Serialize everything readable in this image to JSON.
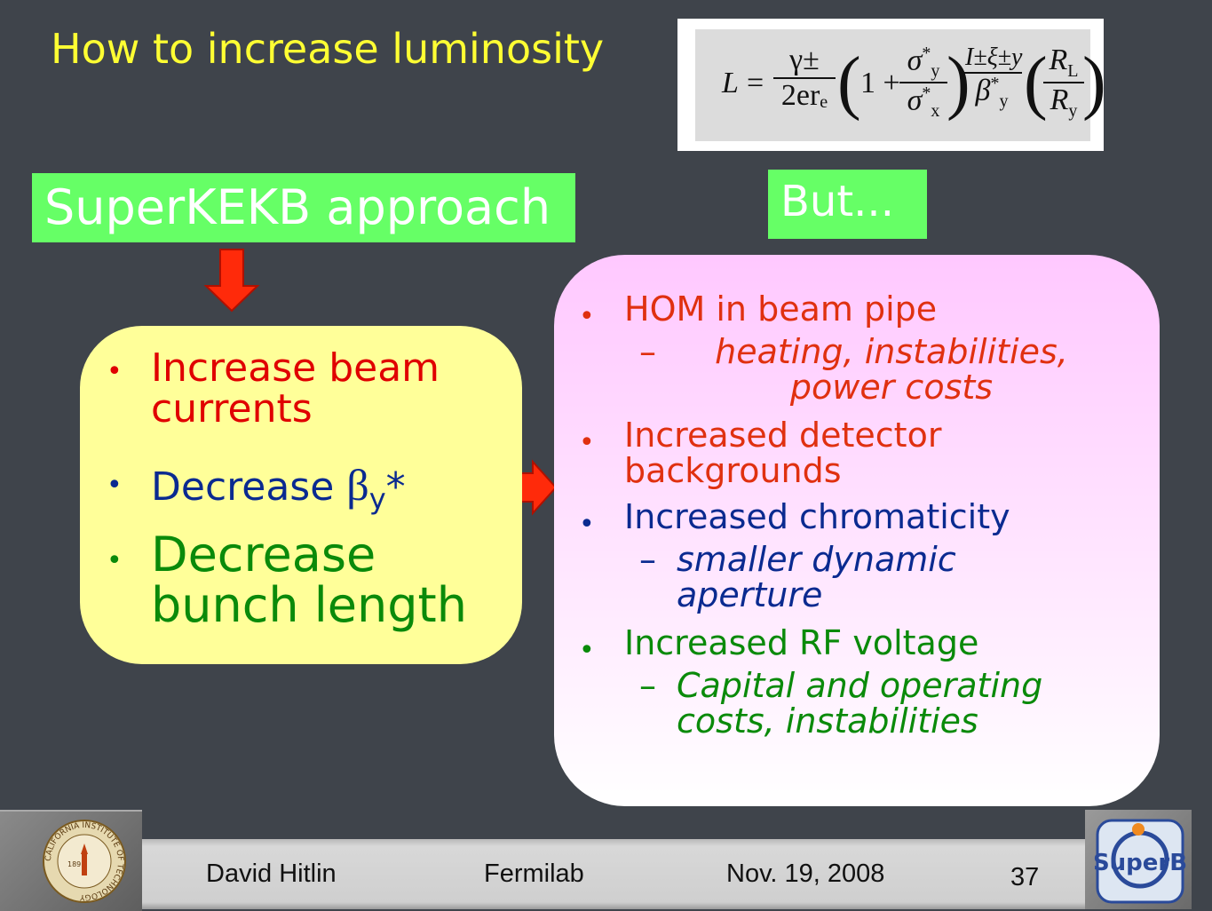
{
  "header": {
    "title": "How to increase luminosity"
  },
  "formula": {
    "lhs": "L",
    "equals": "=",
    "f1": {
      "num": "γ±",
      "den": "2erₑ"
    },
    "one_plus": "1 +",
    "f2": {
      "num": {
        "base": "σ",
        "sup": "*",
        "sub": "y"
      },
      "den": {
        "base": "σ",
        "sup": "*",
        "sub": "x"
      }
    },
    "f3": {
      "num": "I±ξ±y",
      "den": {
        "base": "β",
        "sup": "*",
        "sub": "y"
      }
    },
    "f4": {
      "num": {
        "base": "R",
        "sub": "L"
      },
      "den": {
        "base": "R",
        "sub": "y"
      }
    }
  },
  "approach_label": "SuperKEKB approach",
  "but_label": "But...",
  "approach": {
    "item1": "Increase beam currents",
    "item2": {
      "text": "Decrease ",
      "symbol": "β",
      "sub": "y",
      "suffix": "*"
    },
    "item3": "Decrease bunch length"
  },
  "issues": [
    {
      "text": "HOM in beam pipe",
      "sub": "heating, instabilities, power costs"
    },
    {
      "text": "Increased detector backgrounds"
    },
    {
      "text": "Increased chromaticity",
      "sub": "smaller dynamic aperture"
    },
    {
      "text": "Increased RF voltage",
      "sub": "Capital and operating costs, instabilities"
    }
  ],
  "footer": {
    "author": "David Hitlin",
    "venue": "Fermilab",
    "date": "Nov. 19, 2008",
    "page": "37",
    "left_logo": {
      "year": "1891",
      "ring": "CALIFORNIA INSTITUTE OF TECHNOLOGY"
    },
    "right_logo": "SuperB"
  }
}
